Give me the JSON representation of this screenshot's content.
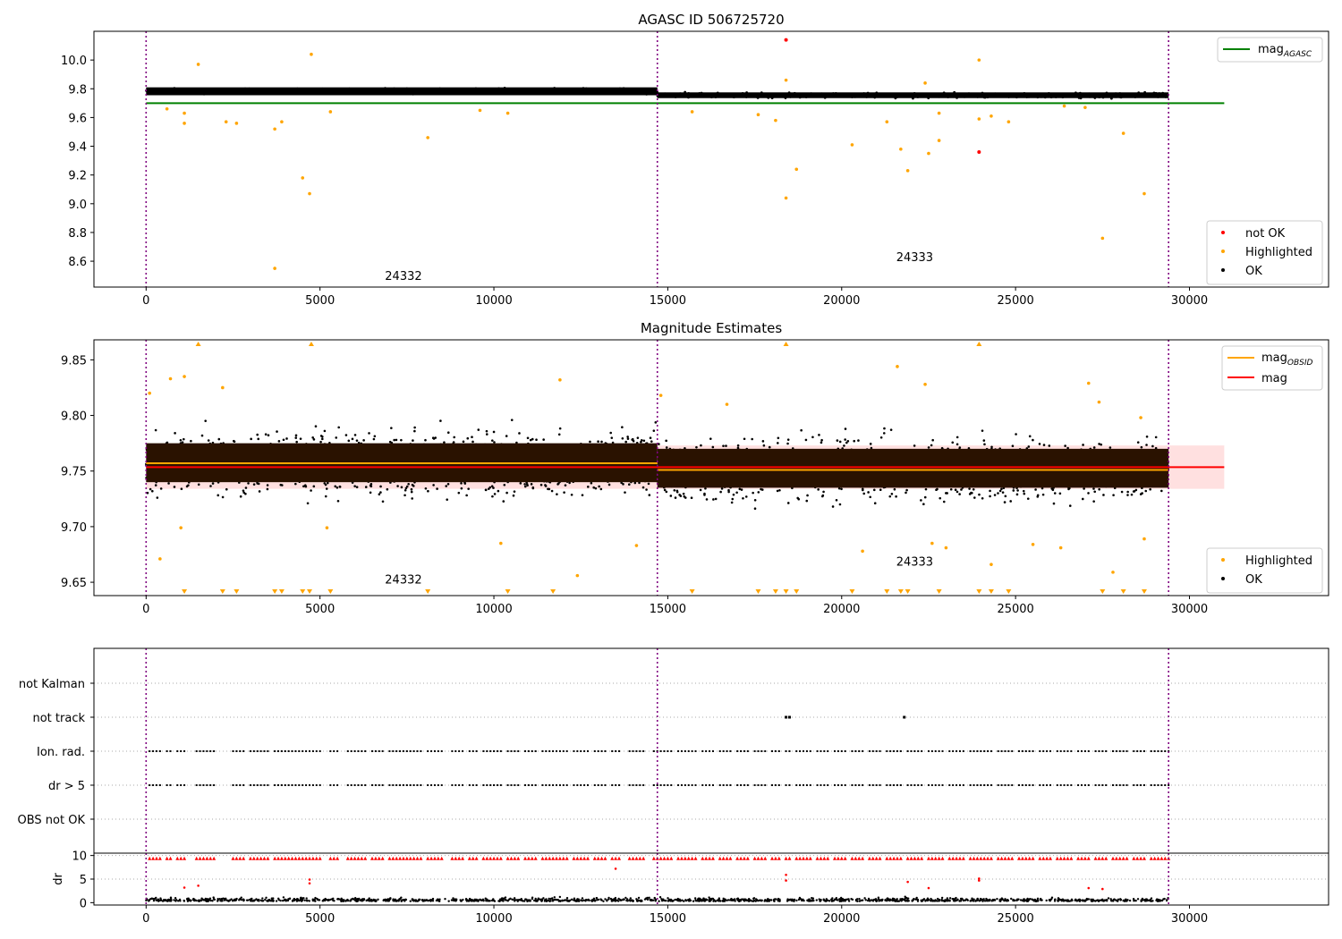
{
  "chart_data": [
    {
      "type": "scatter",
      "title": "AGASC ID 506725720",
      "xlim": [
        -1500,
        34000
      ],
      "ylim": [
        8.42,
        10.2
      ],
      "xticks": [
        0,
        5000,
        10000,
        15000,
        20000,
        25000,
        30000
      ],
      "yticks": [
        8.6,
        8.8,
        9.0,
        9.2,
        9.4,
        9.6,
        9.8,
        10.0
      ],
      "obsid_boundaries": [
        0,
        14700,
        29400
      ],
      "obsid_labels": [
        {
          "text": "24332",
          "x": 7400,
          "y": 8.47
        },
        {
          "text": "24333",
          "x": 22100,
          "y": 8.6
        }
      ],
      "lines": [
        {
          "name": "mag_AGASC",
          "y": 9.7,
          "x": [
            0,
            31000
          ],
          "color": "#008000"
        }
      ],
      "band": {
        "segments": [
          [
            0,
            14700,
            9.755,
            9.81
          ],
          [
            14700,
            29400,
            9.735,
            9.775
          ]
        ],
        "color": "#000000"
      },
      "series": [
        {
          "name": "not OK",
          "color": "#ff0000",
          "points": [
            [
              18400,
              10.14
            ],
            [
              23950,
              9.36
            ]
          ]
        },
        {
          "name": "Highlighted",
          "color": "#ffa500",
          "points": [
            [
              1500,
              9.97
            ],
            [
              4750,
              10.04
            ],
            [
              23950,
              10.0
            ],
            [
              18400,
              9.86
            ],
            [
              22400,
              9.84
            ],
            [
              600,
              9.66
            ],
            [
              1100,
              9.63
            ],
            [
              1100,
              9.56
            ],
            [
              2300,
              9.57
            ],
            [
              2600,
              9.56
            ],
            [
              3700,
              9.52
            ],
            [
              3900,
              9.57
            ],
            [
              5300,
              9.64
            ],
            [
              8100,
              9.46
            ],
            [
              4500,
              9.18
            ],
            [
              4700,
              9.07
            ],
            [
              3700,
              8.55
            ],
            [
              9600,
              9.65
            ],
            [
              10400,
              9.63
            ],
            [
              15700,
              9.64
            ],
            [
              17600,
              9.62
            ],
            [
              18100,
              9.58
            ],
            [
              18700,
              9.24
            ],
            [
              18400,
              9.04
            ],
            [
              20300,
              9.41
            ],
            [
              21300,
              9.57
            ],
            [
              21700,
              9.38
            ],
            [
              21900,
              9.23
            ],
            [
              22500,
              9.35
            ],
            [
              22800,
              9.44
            ],
            [
              22800,
              9.63
            ],
            [
              23950,
              9.59
            ],
            [
              24300,
              9.61
            ],
            [
              24800,
              9.57
            ],
            [
              27500,
              8.76
            ],
            [
              28100,
              9.49
            ],
            [
              28700,
              9.07
            ],
            [
              27000,
              9.67
            ],
            [
              26400,
              9.68
            ]
          ]
        },
        {
          "name": "OK",
          "color": "#000000",
          "points": []
        }
      ],
      "legend": [
        {
          "label": "not OK",
          "color": "#ff0000",
          "kind": "point"
        },
        {
          "label": "Highlighted",
          "color": "#ffa500",
          "kind": "point"
        },
        {
          "label": "OK",
          "color": "#000000",
          "kind": "point"
        }
      ],
      "legend_top": {
        "label": "mag",
        "sub": "AGASC",
        "color": "#008000"
      }
    },
    {
      "type": "scatter",
      "title": "Magnitude Estimates",
      "xlim": [
        -1500,
        34000
      ],
      "ylim": [
        9.638,
        9.868
      ],
      "xticks": [
        0,
        5000,
        10000,
        15000,
        20000,
        25000,
        30000
      ],
      "yticks": [
        9.65,
        9.7,
        9.75,
        9.8,
        9.85
      ],
      "obsid_boundaries": [
        0,
        14700,
        29400
      ],
      "obsid_labels": [
        {
          "text": "24332",
          "x": 7400,
          "y": 9.649
        },
        {
          "text": "24333",
          "x": 22100,
          "y": 9.665
        }
      ],
      "mag_line": {
        "name": "mag",
        "y": 9.7535,
        "x": [
          0,
          31000
        ],
        "color": "#ff0000",
        "band": [
          9.734,
          9.773
        ]
      },
      "obsid_mag_lines": [
        {
          "name": "mag_OBSID",
          "x": [
            0,
            14700
          ],
          "y": 9.757,
          "color": "#ffa500"
        },
        {
          "name": "mag_OBSID",
          "x": [
            14700,
            29400
          ],
          "y": 9.751,
          "color": "#ffa500"
        }
      ],
      "dense_band": {
        "segments": [
          [
            0,
            14700,
            9.74,
            9.775
          ],
          [
            14700,
            29400,
            9.735,
            9.77
          ]
        ],
        "color": "#2a1200"
      },
      "highlighted_points": [
        [
          100,
          9.82
        ],
        [
          1100,
          9.835
        ],
        [
          2200,
          9.825
        ],
        [
          11900,
          9.832
        ],
        [
          21600,
          9.844
        ],
        [
          22400,
          9.828
        ],
        [
          27100,
          9.829
        ],
        [
          700,
          9.833
        ],
        [
          16700,
          9.81
        ],
        [
          14800,
          9.818
        ],
        [
          27400,
          9.812
        ],
        [
          28600,
          9.798
        ],
        [
          400,
          9.671
        ],
        [
          1000,
          9.699
        ],
        [
          5200,
          9.699
        ],
        [
          10200,
          9.685
        ],
        [
          12400,
          9.656
        ],
        [
          14100,
          9.683
        ],
        [
          20600,
          9.678
        ],
        [
          22600,
          9.685
        ],
        [
          23000,
          9.681
        ],
        [
          24300,
          9.666
        ],
        [
          25500,
          9.684
        ],
        [
          26300,
          9.681
        ],
        [
          27800,
          9.659
        ],
        [
          28700,
          9.689
        ]
      ],
      "clipped_top": [
        1500,
        4750,
        18400,
        23950
      ],
      "clipped_bottom": [
        1100,
        2200,
        2600,
        3700,
        3900,
        4500,
        4700,
        5300,
        8100,
        10400,
        11700,
        15700,
        17600,
        18100,
        18400,
        18700,
        20300,
        21300,
        21700,
        21900,
        22800,
        23950,
        24300,
        24800,
        27500,
        28100,
        28700
      ],
      "legend": [
        {
          "label": "Highlighted",
          "color": "#ffa500",
          "kind": "point"
        },
        {
          "label": "OK",
          "color": "#000000",
          "kind": "point"
        }
      ],
      "legend_top": [
        {
          "label": "mag",
          "sub": "OBSID",
          "color": "#ffa500"
        },
        {
          "label": "mag",
          "sub": "",
          "color": "#ff0000"
        }
      ]
    },
    {
      "type": "scatter",
      "title": "",
      "xlim": [
        -1500,
        34000
      ],
      "flag_rows": [
        "not Kalman",
        "not track",
        "Ion. rad.",
        "dr > 5",
        "OBS not OK"
      ],
      "flag_points": {
        "not track": [
          18400,
          18500,
          21800
        ],
        "Ion. rad.": [
          [
            100,
            400
          ],
          [
            600,
            700
          ],
          [
            900,
            1100
          ],
          [
            1450,
            1950
          ],
          [
            2500,
            2800
          ],
          [
            3000,
            3500
          ],
          [
            3700,
            4400
          ],
          [
            4500,
            5000
          ],
          [
            5300,
            5500
          ],
          [
            5800,
            6300
          ],
          [
            6500,
            6800
          ],
          [
            7000,
            7300
          ],
          [
            7400,
            7900
          ],
          [
            8100,
            8500
          ],
          [
            8800,
            9100
          ],
          [
            9300,
            9500
          ],
          [
            9700,
            10200
          ],
          [
            10400,
            10700
          ],
          [
            10900,
            11200
          ],
          [
            11400,
            12100
          ],
          [
            12300,
            12700
          ],
          [
            12900,
            13200
          ],
          [
            13400,
            13600
          ],
          [
            13900,
            14300
          ],
          [
            14600,
            15100
          ],
          [
            15300,
            15800
          ],
          [
            16000,
            16300
          ],
          [
            16500,
            16800
          ],
          [
            17000,
            17300
          ],
          [
            17500,
            17800
          ],
          [
            18000,
            18200
          ],
          [
            18400,
            18500
          ],
          [
            18700,
            19100
          ],
          [
            19300,
            19600
          ],
          [
            19800,
            20100
          ],
          [
            20300,
            20600
          ],
          [
            20800,
            21100
          ],
          [
            21300,
            21700
          ],
          [
            21900,
            22300
          ],
          [
            22500,
            22900
          ],
          [
            23100,
            23500
          ],
          [
            23700,
            24300
          ],
          [
            24500,
            24900
          ],
          [
            25100,
            25500
          ],
          [
            25700,
            26000
          ],
          [
            26200,
            26600
          ],
          [
            26800,
            27100
          ],
          [
            27300,
            27600
          ],
          [
            27800,
            28200
          ],
          [
            28400,
            28700
          ],
          [
            28900,
            29400
          ]
        ],
        "dr > 5": [
          [
            100,
            400
          ],
          [
            600,
            700
          ],
          [
            900,
            1100
          ],
          [
            1450,
            1950
          ],
          [
            2500,
            2800
          ],
          [
            3000,
            3500
          ],
          [
            3700,
            4400
          ],
          [
            4500,
            5000
          ],
          [
            5300,
            5500
          ],
          [
            5800,
            6300
          ],
          [
            6500,
            6800
          ],
          [
            7000,
            7300
          ],
          [
            7400,
            7900
          ],
          [
            8100,
            8500
          ],
          [
            8800,
            9100
          ],
          [
            9300,
            9500
          ],
          [
            9700,
            10200
          ],
          [
            10400,
            10700
          ],
          [
            10900,
            11200
          ],
          [
            11400,
            12100
          ],
          [
            12300,
            12700
          ],
          [
            12900,
            13200
          ],
          [
            13400,
            13600
          ],
          [
            13900,
            14300
          ],
          [
            14600,
            15100
          ],
          [
            15300,
            15800
          ],
          [
            16000,
            16300
          ],
          [
            16500,
            16800
          ],
          [
            17000,
            17300
          ],
          [
            17500,
            17800
          ],
          [
            18000,
            18200
          ],
          [
            18400,
            18500
          ],
          [
            18700,
            19100
          ],
          [
            19300,
            19600
          ],
          [
            19800,
            20100
          ],
          [
            20300,
            20600
          ],
          [
            20800,
            21100
          ],
          [
            21300,
            21700
          ],
          [
            21900,
            22300
          ],
          [
            22500,
            22900
          ],
          [
            23100,
            23500
          ],
          [
            23700,
            24300
          ],
          [
            24500,
            24900
          ],
          [
            25100,
            25500
          ],
          [
            25700,
            26000
          ],
          [
            26200,
            26600
          ],
          [
            26800,
            27100
          ],
          [
            27300,
            27600
          ],
          [
            27800,
            28200
          ],
          [
            28400,
            28700
          ],
          [
            28900,
            29400
          ]
        ]
      },
      "xticks": [
        0,
        5000,
        10000,
        15000,
        20000,
        25000,
        30000
      ],
      "obsid_boundaries": [
        0,
        14700,
        29400
      ]
    },
    {
      "type": "scatter",
      "title": "",
      "ylabel": "dr",
      "xlim": [
        -1500,
        34000
      ],
      "ylim": [
        -0.5,
        10.5
      ],
      "yticks": [
        0,
        5,
        10
      ],
      "xticks": [
        0,
        5000,
        10000,
        15000,
        20000,
        25000,
        30000
      ],
      "obsid_boundaries": [
        0,
        14700,
        29400
      ],
      "dr_outliers": [
        [
          1100,
          3.2
        ],
        [
          1500,
          3.6
        ],
        [
          4700,
          4.1
        ],
        [
          4700,
          4.9
        ],
        [
          13500,
          7.2
        ],
        [
          18400,
          5.9
        ],
        [
          18400,
          4.7
        ],
        [
          21900,
          4.4
        ],
        [
          22500,
          3.1
        ],
        [
          23950,
          5.1
        ],
        [
          23950,
          4.7
        ],
        [
          27100,
          3.1
        ],
        [
          27500,
          2.9
        ]
      ]
    }
  ]
}
